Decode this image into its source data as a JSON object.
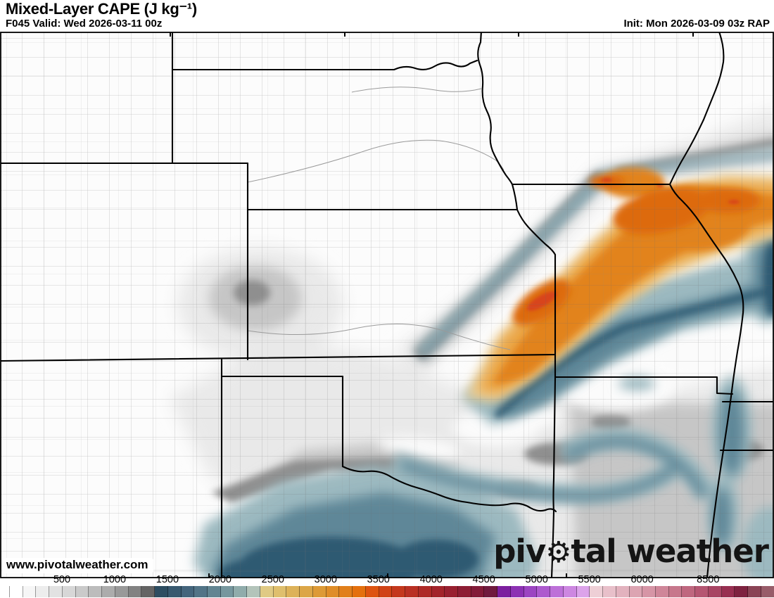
{
  "header": {
    "title": "Mixed-Layer CAPE (J kg⁻¹)",
    "valid": "F045 Valid: Wed 2026-03-11 00z",
    "init": "Init: Mon 2026-03-09 03z RAP"
  },
  "watermark": {
    "url_text": "www.pivotalweather.com"
  },
  "logo": {
    "text_before_gear": "piv",
    "gear_icon": "⚙",
    "text_after_gear": "tal weather"
  },
  "colorbar": {
    "units": "J kg⁻¹",
    "tick_labels": [
      "500",
      "1000",
      "1500",
      "2000",
      "2500",
      "3000",
      "3500",
      "4000",
      "4500",
      "5000",
      "5500",
      "6000",
      "8500"
    ],
    "tick_values": [
      500,
      1000,
      1500,
      2000,
      2500,
      3000,
      3500,
      4000,
      4500,
      5000,
      5500,
      6000,
      8500
    ],
    "value_step_low": 125,
    "value_step_high": 500,
    "step_change_at": 6000,
    "segment_colors": [
      "#ffffff",
      "#f6f6f6",
      "#ededed",
      "#e2e2e2",
      "#d7d7d7",
      "#cacaca",
      "#bcbcbc",
      "#acacac",
      "#999999",
      "#828282",
      "#646464",
      "#2d4d61",
      "#38596f",
      "#44657c",
      "#527487",
      "#628592",
      "#76979e",
      "#90acab",
      "#b3c4ba",
      "#e0ca84",
      "#dfbf6d",
      "#ddb259",
      "#dca647",
      "#dd9a36",
      "#df8d28",
      "#e17f1a",
      "#e4700d",
      "#dd5410",
      "#d04316",
      "#c4381d",
      "#b93023",
      "#ae2a27",
      "#a3242b",
      "#982030",
      "#8d1d34",
      "#821b38",
      "#6f1a3e",
      "#7c1f9f",
      "#8c31b3",
      "#9c45c2",
      "#ad5ace",
      "#bd70d8",
      "#cd87e1",
      "#dca3ea",
      "#eecfd6",
      "#e8c0ca",
      "#e2b2be",
      "#dca4b2",
      "#d695a6",
      "#cf8699",
      "#c7778c",
      "#bf677f",
      "#b55672",
      "#a84463",
      "#982f51",
      "#7e2240",
      "#8a4355",
      "#985c69"
    ]
  },
  "map": {
    "field_max_color": "#d8451b",
    "orange_band_color": "#e2831c",
    "blue_region_color": "#5e8798",
    "low_cape_color": "#fcfcfc"
  }
}
